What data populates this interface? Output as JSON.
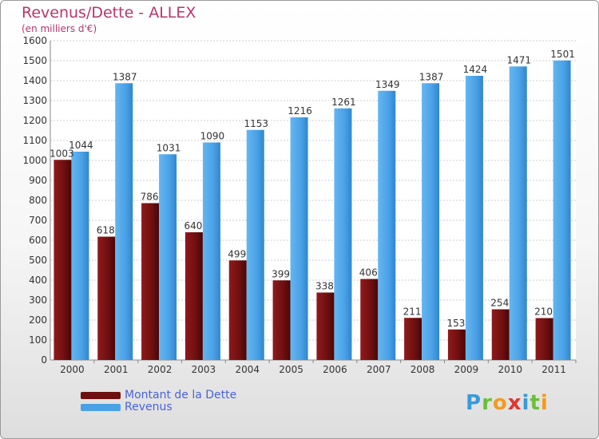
{
  "chart_data": {
    "type": "bar",
    "title": "Revenus/Dette - ALLEX",
    "subtitle": "(en milliers d'€)",
    "categories": [
      "2000",
      "2001",
      "2002",
      "2003",
      "2004",
      "2005",
      "2006",
      "2007",
      "2008",
      "2009",
      "2010",
      "2011"
    ],
    "series": [
      {
        "name": "Montant de la Dette",
        "color": "#6e0f10",
        "values": [
          1003,
          618,
          786,
          640,
          499,
          399,
          338,
          406,
          211,
          153,
          254,
          210
        ]
      },
      {
        "name": "Revenus",
        "color": "#4aa1e6",
        "values": [
          1044,
          1387,
          1031,
          1090,
          1153,
          1216,
          1261,
          1349,
          1387,
          1424,
          1471,
          1501
        ]
      }
    ],
    "ylim": [
      0,
      1600
    ],
    "yticks": [
      0,
      100,
      200,
      300,
      400,
      500,
      600,
      700,
      800,
      900,
      1000,
      1100,
      1200,
      1300,
      1400,
      1500,
      1600
    ],
    "grid": true,
    "legend_position": "bottom-left"
  },
  "logo": {
    "letters": [
      {
        "ch": "P",
        "color": "#3a9ad9"
      },
      {
        "ch": "r",
        "color": "#6bbf3a"
      },
      {
        "ch": "o",
        "color": "#f39a1e"
      },
      {
        "ch": "x",
        "color": "#e0342f"
      },
      {
        "ch": "i",
        "color": "#3a9ad9"
      },
      {
        "ch": "t",
        "color": "#6bbf3a"
      },
      {
        "ch": "i",
        "color": "#f39a1e"
      }
    ]
  }
}
